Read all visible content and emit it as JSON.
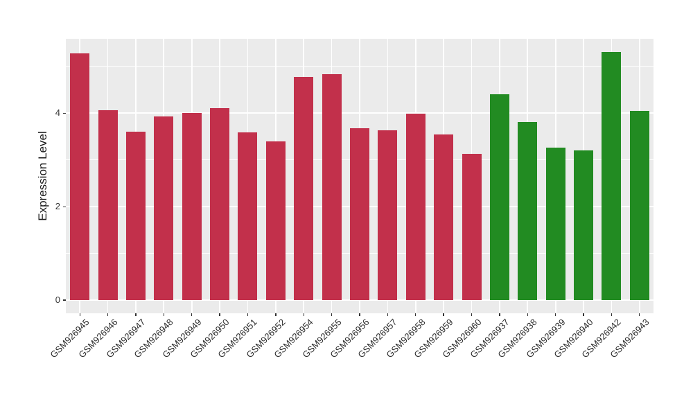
{
  "chart_data": {
    "type": "bar",
    "title": "",
    "xlabel": "",
    "ylabel": "Expression Level",
    "categories": [
      "GSM926945",
      "GSM926946",
      "GSM926947",
      "GSM926948",
      "GSM926949",
      "GSM926950",
      "GSM926951",
      "GSM926952",
      "GSM926954",
      "GSM926955",
      "GSM926956",
      "GSM926957",
      "GSM926958",
      "GSM926959",
      "GSM926960",
      "GSM926937",
      "GSM926938",
      "GSM926939",
      "GSM926940",
      "GSM926942",
      "GSM926943"
    ],
    "values": [
      5.28,
      4.06,
      3.6,
      3.93,
      4.01,
      4.11,
      3.59,
      3.4,
      4.78,
      4.84,
      3.68,
      3.64,
      3.99,
      3.55,
      3.13,
      4.4,
      3.81,
      3.26,
      3.21,
      5.31,
      4.05
    ],
    "groups": [
      "red",
      "red",
      "red",
      "red",
      "red",
      "red",
      "red",
      "red",
      "red",
      "red",
      "red",
      "red",
      "red",
      "red",
      "red",
      "green",
      "green",
      "green",
      "green",
      "green",
      "green"
    ],
    "group_colors": {
      "red": "#C2304B",
      "green": "#228B22"
    },
    "yticks": [
      0,
      2,
      4
    ],
    "minor_yticks": [
      1,
      3,
      5
    ],
    "ylim": [
      -0.28,
      5.59
    ],
    "grid": "on",
    "legend_position": "none",
    "panel_background": "#EBEBEB",
    "gridline_color": "#FFFFFF",
    "tick_color": "#333333"
  }
}
